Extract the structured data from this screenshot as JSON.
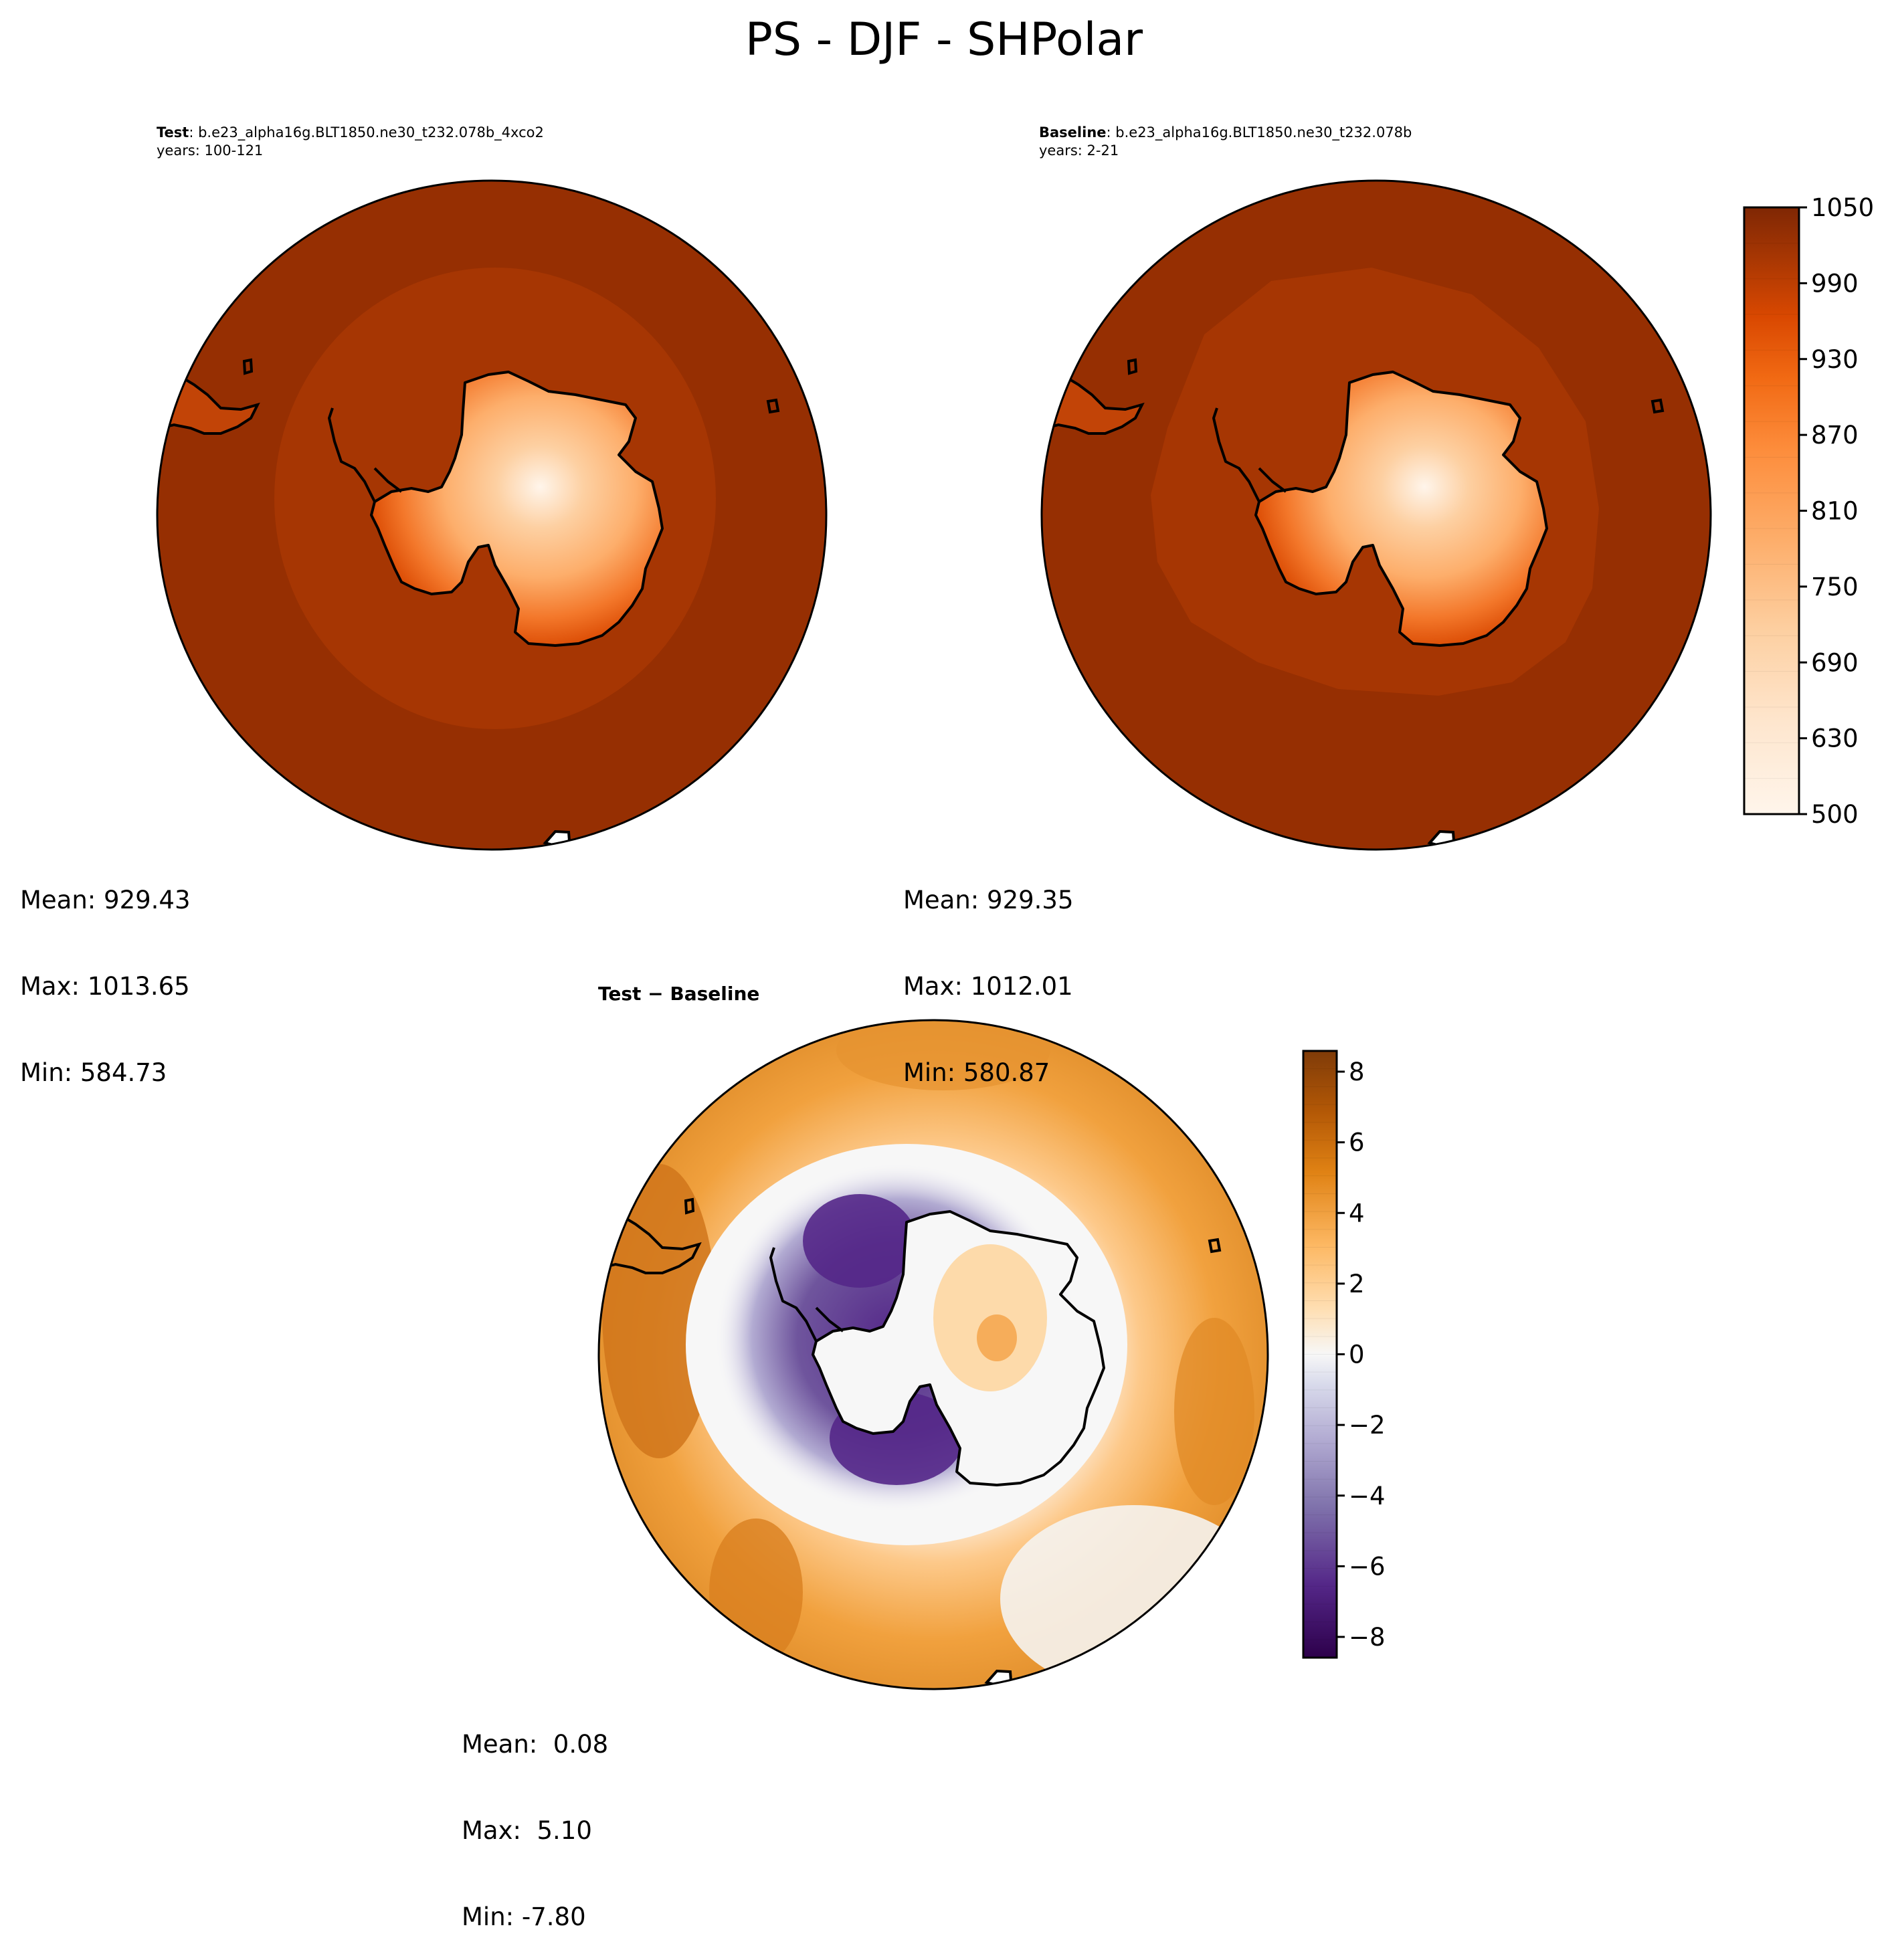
{
  "figure": {
    "title": "PS - DJF - SHPolar"
  },
  "panels": [
    {
      "id": "test",
      "label_bold": "Test",
      "label_rest": ": b.e23_alpha16g.BLT1850.ne30_t232.078b_4xco2",
      "years": "years: 100-121",
      "stats": {
        "mean": "Mean: 929.43",
        "max": "Max: 1013.65",
        "min": "Min: 584.73"
      }
    },
    {
      "id": "baseline",
      "label_bold": "Baseline",
      "label_rest": ": b.e23_alpha16g.BLT1850.ne30_t232.078b",
      "years": "years: 2-21",
      "stats": {
        "mean": "Mean: 929.35",
        "max": "Max: 1012.01",
        "min": "Min: 580.87"
      }
    },
    {
      "id": "diff",
      "label_bold": "Test − Baseline",
      "stats": {
        "mean": "Mean:  0.08",
        "max": "Max:  5.10",
        "min": "Min: -7.80"
      }
    }
  ],
  "colorbars": {
    "absolute": {
      "colormap": "Oranges",
      "ticks": [
        "1050",
        "990",
        "930",
        "870",
        "810",
        "750",
        "690",
        "630",
        "500"
      ],
      "colors": [
        "#fff5eb",
        "#fee6ce",
        "#fdd0a2",
        "#fdae6b",
        "#fd8d3c",
        "#f16913",
        "#d94801",
        "#a63603",
        "#7f2704"
      ]
    },
    "difference": {
      "colormap": "PuOr_r",
      "ticks": [
        "8",
        "6",
        "4",
        "2",
        "0",
        "−2",
        "−4",
        "−6",
        "−8"
      ],
      "colors": [
        "#2d004b",
        "#542788",
        "#8073ac",
        "#b2abd2",
        "#d8daeb",
        "#f7f7f7",
        "#fee0b6",
        "#fdb863",
        "#e08214",
        "#b35806",
        "#7f3b08"
      ]
    }
  },
  "map": {
    "projection": "South Polar Stereographic",
    "region": "SHPolar",
    "season": "DJF",
    "variable": "PS",
    "feature": "antarctica-coastline"
  }
}
